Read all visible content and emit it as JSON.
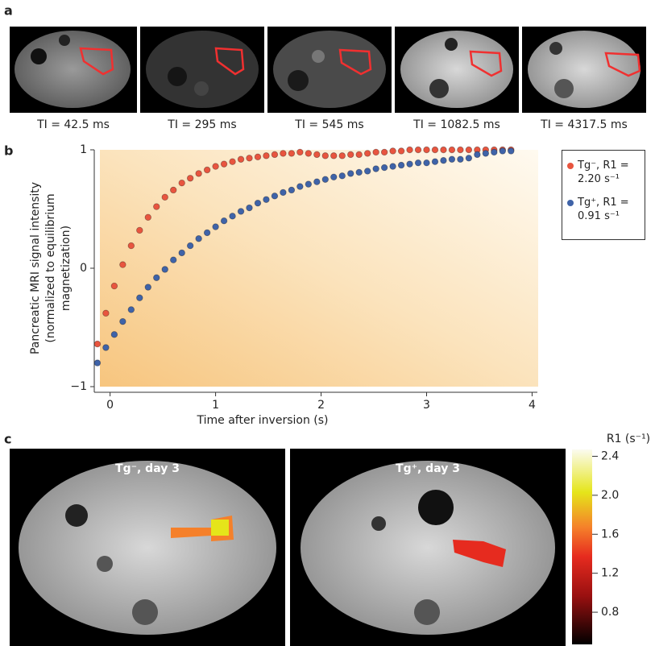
{
  "panel_labels": [
    "a",
    "b",
    "c"
  ],
  "panel_a": {
    "captions": [
      "TI = 42.5 ms",
      "TI = 295 ms",
      "TI = 545 ms",
      "TI = 1082.5 ms",
      "TI = 4317.5 ms"
    ]
  },
  "chart_data": {
    "type": "scatter",
    "xlabel": "Time after inversion (s)",
    "ylabel": [
      "Pancreatic MRI signal intensity",
      "(normalized to equilibrium",
      "magnetization)"
    ],
    "xlim": [
      -0.15,
      4.05
    ],
    "ylim": [
      -1,
      1
    ],
    "xticks": [
      0,
      1,
      2,
      3,
      4
    ],
    "yticks": [
      {
        "value": -1,
        "label": "−1"
      },
      0,
      1
    ],
    "legend": "outside-right",
    "x": [
      -0.12,
      -0.04,
      0.04,
      0.12,
      0.2,
      0.28,
      0.36,
      0.44,
      0.52,
      0.6,
      0.68,
      0.76,
      0.84,
      0.92,
      1,
      1.08,
      1.16,
      1.24,
      1.32,
      1.4,
      1.48,
      1.56,
      1.64,
      1.72,
      1.8,
      1.88,
      1.96,
      2.04,
      2.12,
      2.2,
      2.28,
      2.36,
      2.44,
      2.52,
      2.6,
      2.68,
      2.76,
      2.84,
      2.92,
      3,
      3.08,
      3.16,
      3.24,
      3.32,
      3.4,
      3.48,
      3.56,
      3.64,
      3.72,
      3.8
    ],
    "series": [
      {
        "name": "Tg⁻, R1 = 2.20 s⁻¹",
        "color": "#e8553f",
        "values": [
          -0.64,
          -0.38,
          -0.15,
          0.03,
          0.19,
          0.32,
          0.43,
          0.52,
          0.6,
          0.66,
          0.72,
          0.76,
          0.8,
          0.83,
          0.86,
          0.88,
          0.9,
          0.92,
          0.93,
          0.94,
          0.95,
          0.96,
          0.97,
          0.97,
          0.98,
          0.97,
          0.96,
          0.95,
          0.95,
          0.95,
          0.96,
          0.96,
          0.97,
          0.98,
          0.98,
          0.99,
          0.99,
          1,
          1,
          1,
          1,
          1,
          1,
          1,
          1,
          1,
          1,
          1,
          1,
          1
        ]
      },
      {
        "name": "Tg⁺, R1 = 0.91 s⁻¹",
        "color": "#3f63a8",
        "values": [
          -0.8,
          -0.67,
          -0.56,
          -0.45,
          -0.35,
          -0.25,
          -0.16,
          -0.08,
          -0.01,
          0.07,
          0.13,
          0.19,
          0.25,
          0.3,
          0.35,
          0.4,
          0.44,
          0.48,
          0.51,
          0.55,
          0.58,
          0.61,
          0.64,
          0.66,
          0.69,
          0.71,
          0.73,
          0.75,
          0.77,
          0.78,
          0.8,
          0.81,
          0.82,
          0.84,
          0.85,
          0.86,
          0.87,
          0.88,
          0.89,
          0.89,
          0.9,
          0.91,
          0.92,
          0.92,
          0.93,
          0.96,
          0.97,
          0.98,
          0.99,
          0.99
        ]
      }
    ]
  },
  "panel_c": {
    "titles": [
      "Tg⁻, day 3",
      "Tg⁺, day 3"
    ],
    "colorbar": {
      "label": "R1 (s⁻¹)",
      "lim": [
        0.47,
        2.47
      ],
      "ticks": [
        0.8,
        1.2,
        1.6,
        {
          "value": 2,
          "label": "2.0"
        },
        2.4
      ]
    }
  }
}
